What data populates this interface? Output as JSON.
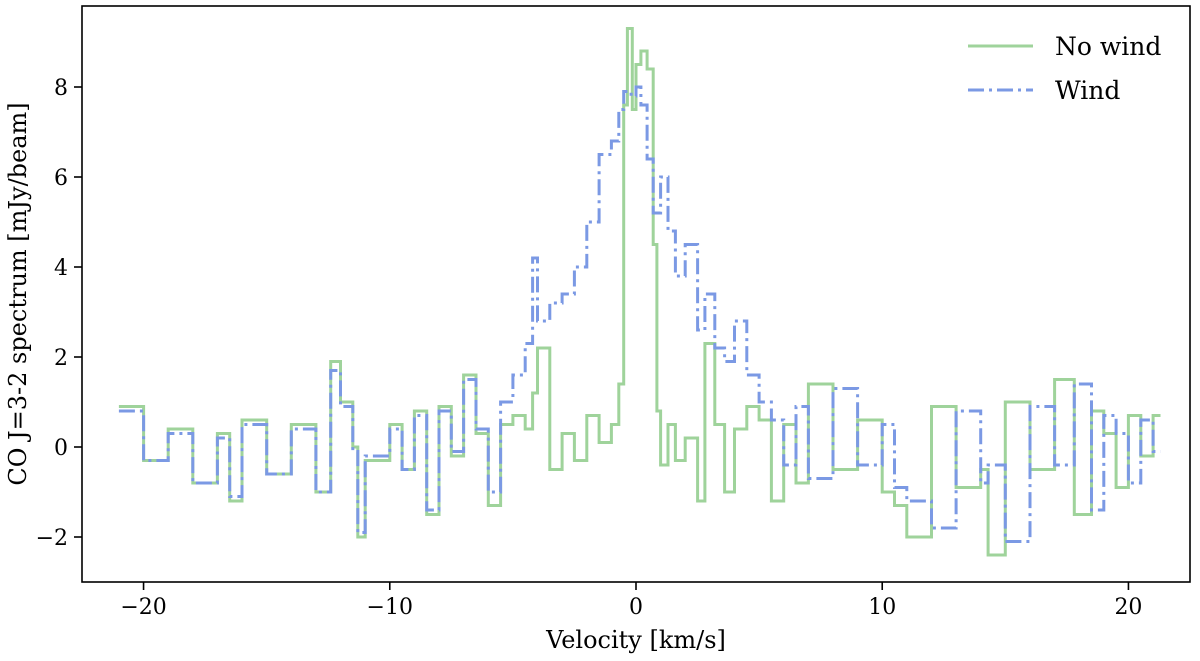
{
  "chart_data": {
    "type": "line",
    "drawstyle": "steps",
    "title": "",
    "xlabel": "Velocity [km/s]",
    "ylabel": "CO J=3-2 spectrum [mJy/beam]",
    "xlim": [
      -22.5,
      22.5
    ],
    "ylim": [
      -3.0,
      9.8
    ],
    "xticks": [
      -20,
      -10,
      0,
      10,
      20
    ],
    "xtick_labels": [
      "−20",
      "−10",
      "0",
      "10",
      "20"
    ],
    "yticks": [
      -2,
      0,
      2,
      4,
      6,
      8
    ],
    "ytick_labels": [
      "−2",
      "0",
      "2",
      "4",
      "6",
      "8"
    ],
    "grid": false,
    "legend": {
      "location": "top-right",
      "entries": [
        "No wind",
        "Wind"
      ]
    },
    "series": [
      {
        "name": "No wind",
        "color": "#9fd39b",
        "linestyle": "solid",
        "x": [
          -21.0,
          -20.0,
          -19.0,
          -18.0,
          -17.0,
          -16.5,
          -16.0,
          -15.0,
          -14.0,
          -13.0,
          -12.4,
          -12.0,
          -11.5,
          -11.3,
          -11.0,
          -10.0,
          -9.5,
          -9.0,
          -8.5,
          -8.0,
          -7.5,
          -7.0,
          -6.5,
          -6.0,
          -5.5,
          -5.0,
          -4.5,
          -4.2,
          -4.0,
          -3.5,
          -3.0,
          -2.5,
          -2.0,
          -1.5,
          -1.0,
          -0.7,
          -0.5,
          -0.35,
          -0.15,
          0.0,
          0.2,
          0.45,
          0.7,
          0.85,
          1.0,
          1.3,
          1.6,
          2.0,
          2.5,
          2.8,
          3.2,
          3.6,
          4.0,
          4.5,
          5.0,
          5.5,
          6.0,
          6.5,
          7.0,
          8.0,
          9.0,
          10.0,
          10.5,
          11.0,
          12.0,
          13.0,
          14.0,
          14.3,
          15.0,
          16.0,
          17.0,
          17.8,
          18.5,
          19.0,
          19.5,
          20.0,
          20.5,
          21.0
        ],
        "values": [
          0.9,
          -0.3,
          0.4,
          -0.8,
          0.3,
          -1.2,
          0.6,
          -0.6,
          0.5,
          -1.0,
          1.9,
          1.0,
          0.0,
          -2.0,
          -0.3,
          0.5,
          -0.5,
          0.8,
          -1.5,
          0.9,
          -0.2,
          1.6,
          0.3,
          -1.3,
          0.5,
          0.7,
          0.4,
          1.2,
          2.2,
          -0.5,
          0.3,
          -0.3,
          0.7,
          0.1,
          0.5,
          1.4,
          7.6,
          9.3,
          7.5,
          8.5,
          8.8,
          8.4,
          4.5,
          0.8,
          -0.4,
          0.5,
          -0.3,
          0.2,
          -1.2,
          2.3,
          0.5,
          -1.0,
          0.4,
          0.9,
          0.6,
          -1.2,
          0.5,
          -0.8,
          1.4,
          -0.5,
          0.6,
          -1.0,
          -1.3,
          -2.0,
          0.9,
          -0.9,
          -0.5,
          -2.4,
          1.0,
          -0.5,
          1.5,
          -1.5,
          0.8,
          0.3,
          -0.9,
          0.7,
          -0.2,
          0.7
        ]
      },
      {
        "name": "Wind",
        "color": "#7b99e4",
        "linestyle": "dashdot",
        "x": [
          -21.0,
          -20.0,
          -19.0,
          -18.0,
          -17.0,
          -16.5,
          -16.0,
          -15.0,
          -14.0,
          -13.0,
          -12.4,
          -12.0,
          -11.5,
          -11.3,
          -11.0,
          -10.0,
          -9.5,
          -9.0,
          -8.5,
          -8.0,
          -7.5,
          -7.0,
          -6.5,
          -6.0,
          -5.5,
          -5.0,
          -4.5,
          -4.2,
          -4.0,
          -3.5,
          -3.0,
          -2.5,
          -2.0,
          -1.5,
          -1.0,
          -0.7,
          -0.5,
          -0.2,
          0.0,
          0.2,
          0.45,
          0.7,
          1.0,
          1.3,
          1.6,
          2.0,
          2.5,
          2.8,
          3.2,
          3.6,
          4.0,
          4.5,
          5.0,
          5.5,
          6.0,
          6.5,
          7.0,
          8.0,
          9.0,
          10.0,
          10.5,
          11.0,
          12.0,
          13.0,
          14.0,
          14.3,
          15.0,
          16.0,
          17.0,
          17.8,
          18.5,
          19.0,
          19.5,
          20.0,
          20.5,
          21.0
        ],
        "values": [
          0.8,
          -0.3,
          0.3,
          -0.8,
          0.2,
          -1.1,
          0.5,
          -0.6,
          0.4,
          -1.0,
          1.7,
          0.9,
          -0.1,
          -1.9,
          -0.2,
          0.4,
          -0.5,
          0.7,
          -1.4,
          0.8,
          -0.1,
          1.5,
          0.4,
          -1.0,
          1.0,
          1.6,
          2.3,
          4.2,
          2.8,
          3.2,
          3.4,
          4.0,
          5.0,
          6.5,
          6.8,
          7.5,
          7.9,
          7.8,
          8.0,
          7.6,
          6.4,
          5.2,
          6.0,
          4.8,
          3.8,
          4.5,
          2.6,
          3.4,
          2.2,
          1.9,
          2.8,
          1.6,
          1.0,
          0.6,
          -0.4,
          0.9,
          -0.7,
          1.3,
          -0.4,
          0.5,
          -0.9,
          -1.2,
          -1.8,
          0.8,
          -0.8,
          -0.4,
          -2.1,
          0.9,
          -0.4,
          1.4,
          -1.4,
          0.7,
          0.3,
          -0.8,
          0.6,
          -0.1
        ]
      }
    ]
  }
}
